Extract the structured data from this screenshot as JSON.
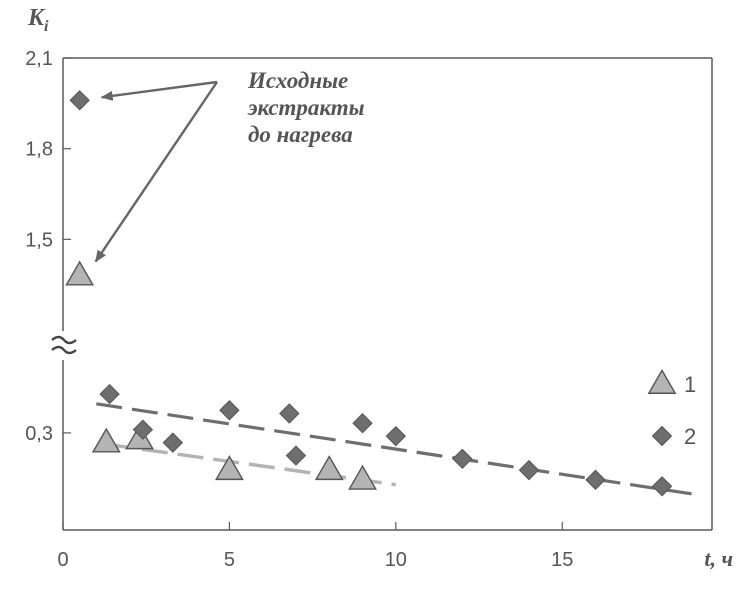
{
  "chart_data": {
    "type": "scatter",
    "title": "",
    "xlabel": "t, ч",
    "ylabel": "Ki",
    "ylabel_main": "K",
    "ylabel_sub": "i",
    "xlim": [
      0,
      19.5
    ],
    "x_ticks": [
      "0",
      "5",
      "10",
      "15"
    ],
    "x_tick_values": [
      0,
      5,
      10,
      15
    ],
    "y_ticks_upper": [
      "1,5",
      "1,8",
      "2,1"
    ],
    "y_tick_upper_values": [
      1.5,
      1.8,
      2.1
    ],
    "y_ticks_lower": [
      "0,3"
    ],
    "y_tick_lower_values": [
      0.3
    ],
    "upper_ylim": [
      1.2,
      2.1
    ],
    "lower_ylim": [
      0.0,
      0.55
    ],
    "axis_break": true,
    "axis_break_symbol": "≈",
    "grid": false,
    "legend_position": "right",
    "annotation": [
      "Исходные",
      "экстракты",
      "до нагрева"
    ],
    "series": [
      {
        "name": "1",
        "marker": "triangle",
        "color": "#b4b4b4",
        "points": [
          [
            0.5,
            1.38
          ],
          [
            1.3,
            0.27
          ],
          [
            2.3,
            0.28
          ],
          [
            5.0,
            0.185
          ],
          [
            8.0,
            0.185
          ],
          [
            9.0,
            0.155
          ]
        ],
        "trend": {
          "x": [
            1.3,
            10.0
          ],
          "y": [
            0.265,
            0.14
          ],
          "color": "#b4b4b4"
        }
      },
      {
        "name": "2",
        "marker": "diamond",
        "color": "#6e6e6e",
        "points": [
          [
            0.5,
            1.96
          ],
          [
            1.4,
            0.42
          ],
          [
            2.4,
            0.31
          ],
          [
            3.3,
            0.27
          ],
          [
            5.0,
            0.37
          ],
          [
            6.8,
            0.36
          ],
          [
            7.0,
            0.23
          ],
          [
            9.0,
            0.33
          ],
          [
            10.0,
            0.29
          ],
          [
            12.0,
            0.22
          ],
          [
            14.0,
            0.185
          ],
          [
            16.0,
            0.155
          ],
          [
            18.0,
            0.135
          ]
        ],
        "trend": {
          "x": [
            1.0,
            19.0
          ],
          "y": [
            0.39,
            0.11
          ],
          "color": "#6e6e6e"
        }
      }
    ],
    "annotated_points": [
      [
        0.5,
        1.96
      ],
      [
        0.5,
        1.38
      ]
    ]
  }
}
